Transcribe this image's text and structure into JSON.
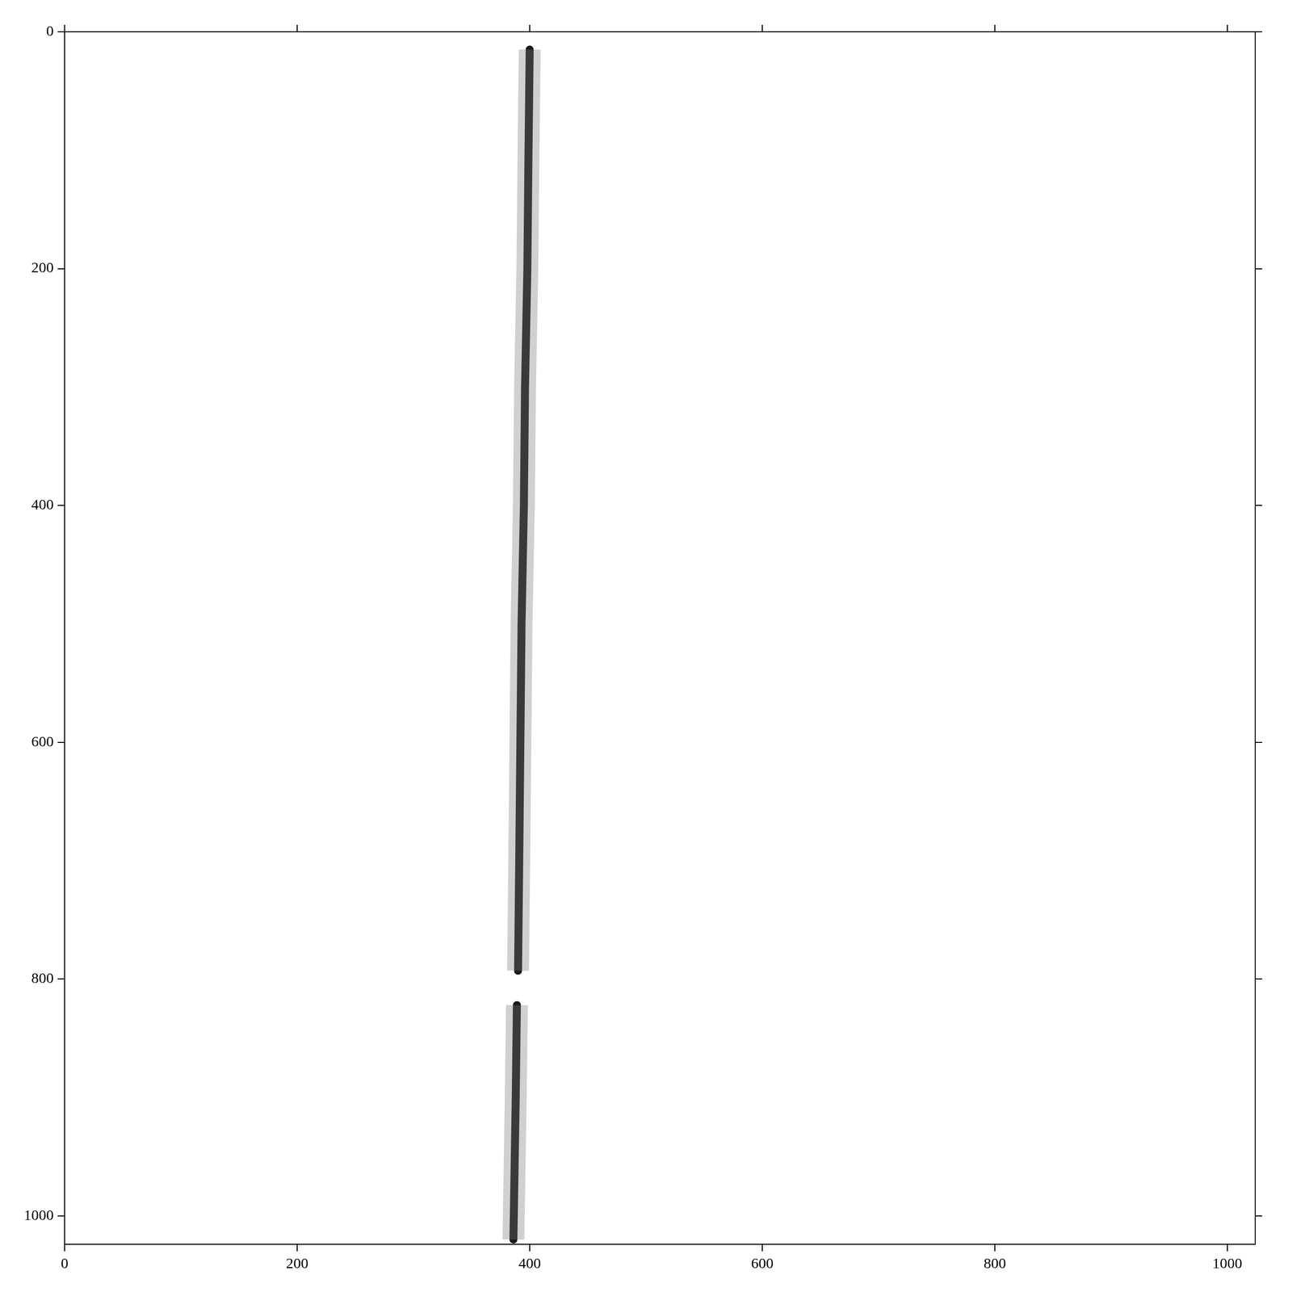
{
  "chart_data": {
    "type": "line",
    "x": [
      400,
      399,
      398,
      396,
      395,
      393,
      392,
      391,
      390,
      null,
      389,
      388,
      387,
      386
    ],
    "y": [
      15,
      100,
      200,
      300,
      400,
      500,
      600,
      700,
      793,
      null,
      822,
      900,
      960,
      1020
    ],
    "color": "#1a1a1a",
    "xlim": [
      0,
      1024
    ],
    "ylim": [
      0,
      1024
    ],
    "xticks": [
      0,
      200,
      400,
      600,
      800,
      1000
    ],
    "yticks": [
      0,
      200,
      400,
      600,
      800,
      1000
    ],
    "grid": false
  }
}
